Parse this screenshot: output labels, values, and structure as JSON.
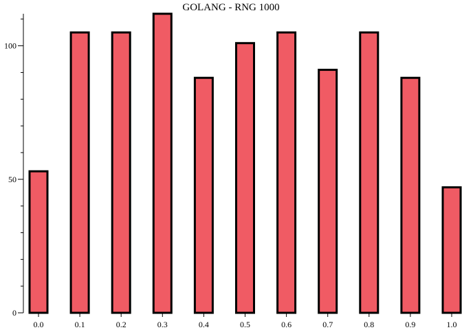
{
  "chart_data": {
    "type": "bar",
    "title": "GOLANG - RNG 1000",
    "xlabel": "",
    "ylabel": "",
    "categories": [
      "0.0",
      "0.1",
      "0.2",
      "0.3",
      "0.4",
      "0.5",
      "0.6",
      "0.7",
      "0.8",
      "0.9",
      "1.0"
    ],
    "values": [
      53,
      105,
      105,
      112,
      88,
      101,
      105,
      91,
      105,
      88,
      47
    ],
    "ylim": [
      0,
      112
    ],
    "y_major_ticks": [
      0,
      50,
      100
    ],
    "y_minor_step": 10,
    "bar_color": "#f05b64",
    "bar_edge_color": "#000000",
    "grid": false,
    "legend": "none"
  }
}
